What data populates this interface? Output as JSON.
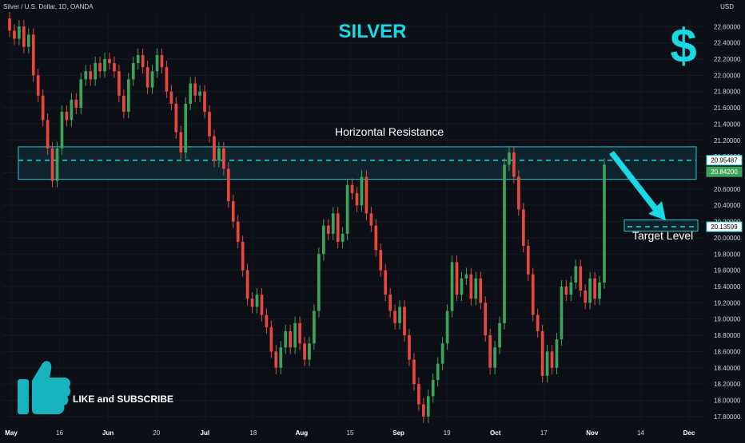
{
  "header": {
    "symbol_line": "Silver / U.S. Dollar, 1D, OANDA",
    "title": "SILVER",
    "currency": "USD"
  },
  "annotations": {
    "resistance_label": "Horizontal Resistance",
    "target_label": "Target Level",
    "like_text": "LIKE and SUBSCRIBE",
    "dollar_icon": "dollar-sign-icon",
    "thumbs_icon": "thumbs-up-icon"
  },
  "colors": {
    "background": "#0c0f16",
    "accent": "#18d9e4",
    "up": "#3ea35a",
    "down": "#e8473e",
    "zone_fill": "#0f2b33",
    "zone_stroke": "#22c8d4"
  },
  "price_badges": [
    {
      "value": "20.95487",
      "bg": "#ffffff",
      "fg": "#000000",
      "border": "#18d9e4"
    },
    {
      "value": "20.84200",
      "bg": "#3ea35a",
      "fg": "#ffffff",
      "border": "#3ea35a"
    },
    {
      "value": "20.13599",
      "bg": "#ffffff",
      "fg": "#000000",
      "border": "#18d9e4"
    }
  ],
  "chart_data": {
    "type": "candlestick",
    "y_axis": {
      "min": 17.7,
      "max": 22.75,
      "ticks": [
        "17.80000",
        "18.00000",
        "18.20000",
        "18.40000",
        "18.60000",
        "18.80000",
        "19.00000",
        "19.20000",
        "19.40000",
        "19.60000",
        "19.80000",
        "20.00000",
        "20.20000",
        "20.40000",
        "20.60000",
        "20.80000",
        "21.00000",
        "21.20000",
        "21.40000",
        "21.60000",
        "21.80000",
        "22.00000",
        "22.20000",
        "22.40000",
        "22.60000"
      ]
    },
    "x_axis": {
      "ticks": [
        {
          "label": "May",
          "bold": true
        },
        {
          "label": "16",
          "bold": false
        },
        {
          "label": "Jun",
          "bold": true
        },
        {
          "label": "20",
          "bold": false
        },
        {
          "label": "Jul",
          "bold": true
        },
        {
          "label": "18",
          "bold": false
        },
        {
          "label": "Aug",
          "bold": true
        },
        {
          "label": "15",
          "bold": false
        },
        {
          "label": "Sep",
          "bold": true
        },
        {
          "label": "19",
          "bold": false
        },
        {
          "label": "Oct",
          "bold": true
        },
        {
          "label": "17",
          "bold": false
        },
        {
          "label": "Nov",
          "bold": true
        },
        {
          "label": "14",
          "bold": false
        },
        {
          "label": "Dec",
          "bold": true
        }
      ]
    },
    "resistance_zone": {
      "low": 20.72,
      "high": 21.12,
      "line": 20.95487
    },
    "target_zone": {
      "low": 20.08,
      "high": 20.18,
      "line": 20.13599
    },
    "candles": [
      [
        22.7,
        22.55
      ],
      [
        22.55,
        22.45
      ],
      [
        22.45,
        22.6
      ],
      [
        22.6,
        22.35
      ],
      [
        22.35,
        22.5
      ],
      [
        22.5,
        22.0
      ],
      [
        22.0,
        21.75
      ],
      [
        21.75,
        21.45
      ],
      [
        21.45,
        21.1
      ],
      [
        21.1,
        20.7
      ],
      [
        20.7,
        21.1
      ],
      [
        21.1,
        21.55
      ],
      [
        21.55,
        21.45
      ],
      [
        21.45,
        21.7
      ],
      [
        21.7,
        21.6
      ],
      [
        21.6,
        21.95
      ],
      [
        21.95,
        22.05
      ],
      [
        22.05,
        21.95
      ],
      [
        21.95,
        22.15
      ],
      [
        22.15,
        22.05
      ],
      [
        22.05,
        22.2
      ],
      [
        22.2,
        22.15
      ],
      [
        22.15,
        22.05
      ],
      [
        22.05,
        21.75
      ],
      [
        21.75,
        21.55
      ],
      [
        21.55,
        21.95
      ],
      [
        21.95,
        22.15
      ],
      [
        22.15,
        22.25
      ],
      [
        22.25,
        22.1
      ],
      [
        22.1,
        21.85
      ],
      [
        21.85,
        22.05
      ],
      [
        22.05,
        22.25
      ],
      [
        22.25,
        22.1
      ],
      [
        22.1,
        21.8
      ],
      [
        21.8,
        21.65
      ],
      [
        21.65,
        21.3
      ],
      [
        21.3,
        21.05
      ],
      [
        21.05,
        21.65
      ],
      [
        21.65,
        21.9
      ],
      [
        21.9,
        21.75
      ],
      [
        21.75,
        21.8
      ],
      [
        21.8,
        21.55
      ],
      [
        21.55,
        21.25
      ],
      [
        21.25,
        20.95
      ],
      [
        20.95,
        21.1
      ],
      [
        21.1,
        20.85
      ],
      [
        20.85,
        20.45
      ],
      [
        20.45,
        20.2
      ],
      [
        20.2,
        19.95
      ],
      [
        19.95,
        19.6
      ],
      [
        19.6,
        19.25
      ],
      [
        19.25,
        19.15
      ],
      [
        19.15,
        19.3
      ],
      [
        19.3,
        19.05
      ],
      [
        19.05,
        18.9
      ],
      [
        18.9,
        18.6
      ],
      [
        18.6,
        18.4
      ],
      [
        18.4,
        18.65
      ],
      [
        18.65,
        18.85
      ],
      [
        18.85,
        18.65
      ],
      [
        18.65,
        18.95
      ],
      [
        18.95,
        18.7
      ],
      [
        18.7,
        18.5
      ],
      [
        18.5,
        18.7
      ],
      [
        18.7,
        19.1
      ],
      [
        19.1,
        19.8
      ],
      [
        19.8,
        20.15
      ],
      [
        20.15,
        20.05
      ],
      [
        20.05,
        20.3
      ],
      [
        20.3,
        19.95
      ],
      [
        19.95,
        20.05
      ],
      [
        20.05,
        20.65
      ],
      [
        20.65,
        20.55
      ],
      [
        20.55,
        20.4
      ],
      [
        20.4,
        20.75
      ],
      [
        20.75,
        20.3
      ],
      [
        20.3,
        20.15
      ],
      [
        20.15,
        19.85
      ],
      [
        19.85,
        19.6
      ],
      [
        19.6,
        19.3
      ],
      [
        19.3,
        19.1
      ],
      [
        19.1,
        18.95
      ],
      [
        18.95,
        19.15
      ],
      [
        19.15,
        18.8
      ],
      [
        18.8,
        18.5
      ],
      [
        18.5,
        18.2
      ],
      [
        18.2,
        17.95
      ],
      [
        17.95,
        17.8
      ],
      [
        17.8,
        18.05
      ],
      [
        18.05,
        18.25
      ],
      [
        18.25,
        18.45
      ],
      [
        18.45,
        18.7
      ],
      [
        18.7,
        19.1
      ],
      [
        19.1,
        19.7
      ],
      [
        19.7,
        19.3
      ],
      [
        19.3,
        19.5
      ],
      [
        19.5,
        19.55
      ],
      [
        19.55,
        19.25
      ],
      [
        19.25,
        19.5
      ],
      [
        19.5,
        19.2
      ],
      [
        19.2,
        18.8
      ],
      [
        18.8,
        18.4
      ],
      [
        18.4,
        18.65
      ],
      [
        18.65,
        18.95
      ],
      [
        18.95,
        20.9
      ],
      [
        20.9,
        21.05
      ],
      [
        21.05,
        20.75
      ],
      [
        20.75,
        20.35
      ],
      [
        20.35,
        19.9
      ],
      [
        19.9,
        19.55
      ],
      [
        19.55,
        19.05
      ],
      [
        19.05,
        18.85
      ],
      [
        18.85,
        18.3
      ],
      [
        18.3,
        18.6
      ],
      [
        18.6,
        18.4
      ],
      [
        18.4,
        18.75
      ],
      [
        18.75,
        19.4
      ],
      [
        19.4,
        19.3
      ],
      [
        19.3,
        19.45
      ],
      [
        19.45,
        19.65
      ],
      [
        19.65,
        19.35
      ],
      [
        19.35,
        19.2
      ],
      [
        19.2,
        19.5
      ],
      [
        19.5,
        19.25
      ],
      [
        19.25,
        19.45
      ],
      [
        19.45,
        20.9
      ]
    ]
  }
}
